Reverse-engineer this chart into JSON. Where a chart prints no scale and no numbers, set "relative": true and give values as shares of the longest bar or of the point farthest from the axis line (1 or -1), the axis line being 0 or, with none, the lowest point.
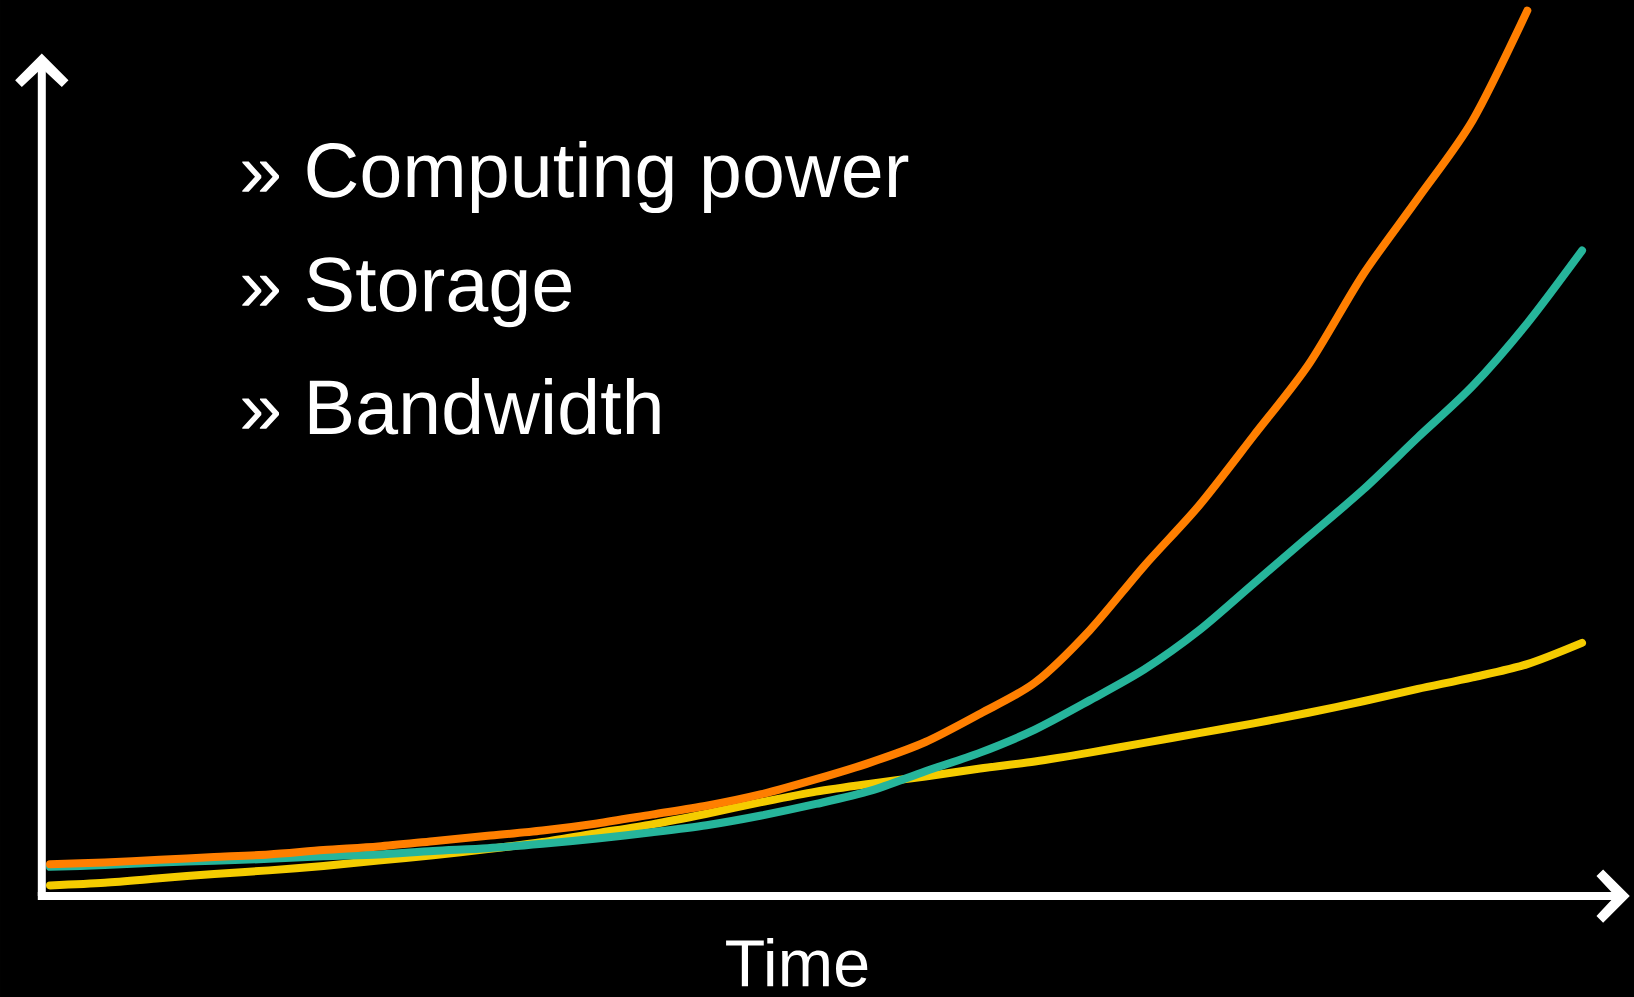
{
  "chart_data": {
    "type": "line",
    "relative": true,
    "xlabel": "Time",
    "annotations": [
      "» Computing power",
      "» Storage",
      "» Bandwidth"
    ],
    "categories": [
      null,
      null,
      null,
      null,
      null,
      null,
      null,
      null,
      null,
      null,
      null,
      null,
      null,
      null,
      null,
      null,
      null,
      null,
      null,
      null,
      null,
      null,
      null,
      null,
      null,
      null,
      null,
      null,
      null
    ],
    "series": [
      {
        "color": "#ff7f00",
        "values": [
          0.036,
          0.038,
          0.041,
          0.044,
          0.047,
          0.052,
          0.056,
          0.062,
          0.068,
          0.074,
          0.082,
          0.092,
          0.102,
          0.115,
          0.132,
          0.151,
          0.174,
          0.206,
          0.241,
          0.3,
          0.373,
          0.441,
          0.52,
          0.6,
          0.702,
          0.788,
          0.876,
          1.0,
          null
        ]
      },
      {
        "color": "#26b59b",
        "values": [
          0.033,
          0.035,
          0.038,
          0.04,
          0.042,
          0.045,
          0.047,
          0.051,
          0.054,
          0.059,
          0.065,
          0.072,
          0.08,
          0.091,
          0.104,
          0.119,
          0.141,
          0.162,
          0.188,
          0.221,
          0.256,
          0.3,
          0.353,
          0.406,
          0.459,
          0.518,
          0.576,
          0.647,
          0.729
        ]
      },
      {
        "color": "#f5cc00",
        "values": [
          0.012,
          0.015,
          0.02,
          0.025,
          0.029,
          0.034,
          0.04,
          0.046,
          0.053,
          0.061,
          0.071,
          0.081,
          0.093,
          0.106,
          0.118,
          0.127,
          0.135,
          0.144,
          0.152,
          0.162,
          0.173,
          0.184,
          0.195,
          0.207,
          0.22,
          0.234,
          0.247,
          0.262,
          0.286
        ]
      }
    ]
  }
}
